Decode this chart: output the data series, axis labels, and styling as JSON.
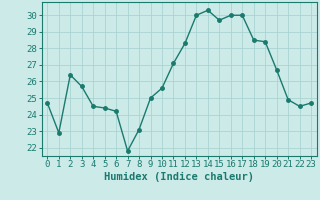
{
  "x": [
    0,
    1,
    2,
    3,
    4,
    5,
    6,
    7,
    8,
    9,
    10,
    11,
    12,
    13,
    14,
    15,
    16,
    17,
    18,
    19,
    20,
    21,
    22,
    23
  ],
  "y": [
    24.7,
    22.9,
    26.4,
    25.7,
    24.5,
    24.4,
    24.2,
    21.8,
    23.1,
    25.0,
    25.6,
    27.1,
    28.3,
    30.0,
    30.3,
    29.7,
    30.0,
    30.0,
    28.5,
    28.4,
    26.7,
    24.9,
    24.5,
    24.7
  ],
  "xlabel": "Humidex (Indice chaleur)",
  "ylim": [
    21.5,
    30.8
  ],
  "xlim": [
    -0.5,
    23.5
  ],
  "yticks": [
    22,
    23,
    24,
    25,
    26,
    27,
    28,
    29,
    30
  ],
  "xticks": [
    0,
    1,
    2,
    3,
    4,
    5,
    6,
    7,
    8,
    9,
    10,
    11,
    12,
    13,
    14,
    15,
    16,
    17,
    18,
    19,
    20,
    21,
    22,
    23
  ],
  "line_color": "#1a7a6e",
  "marker_color": "#1a7a6e",
  "bg_color": "#cceae8",
  "grid_color": "#aad4d2",
  "axis_color": "#1a7a6e",
  "tick_label_color": "#1a7a6e",
  "xlabel_color": "#1a7a6e",
  "xlabel_fontsize": 7.5,
  "tick_fontsize": 6.5,
  "marker_size": 2.5,
  "line_width": 1.0
}
